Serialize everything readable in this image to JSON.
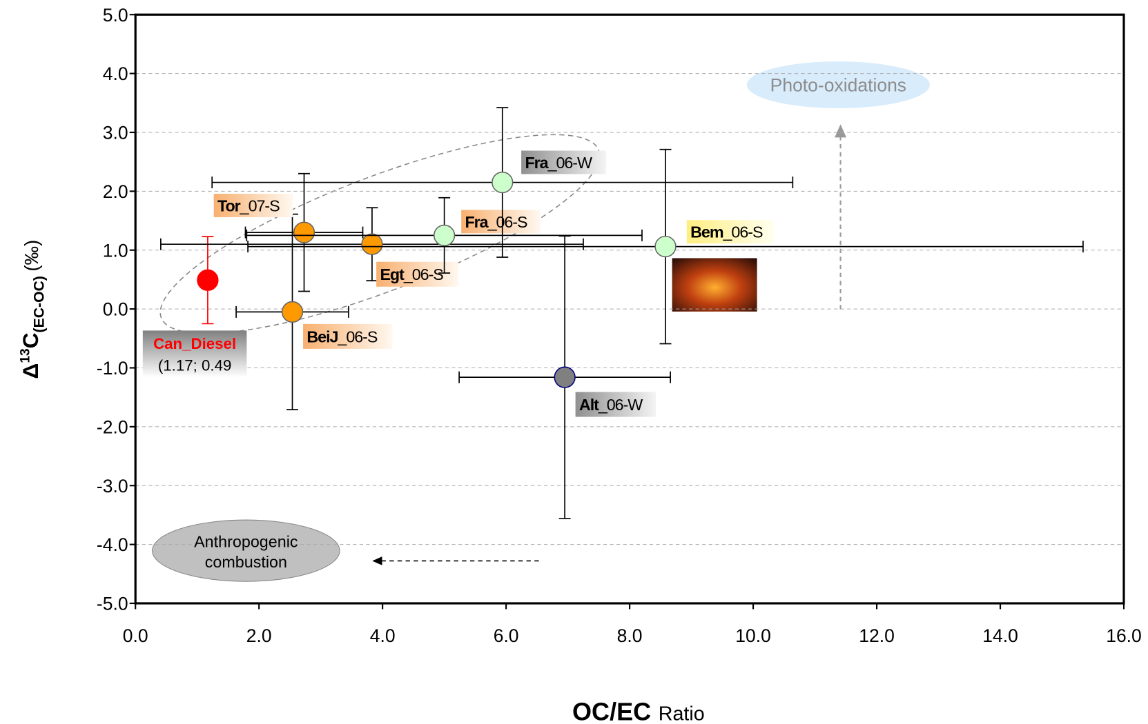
{
  "chart_data": {
    "type": "scatter",
    "xlabel": {
      "main": "OC/EC",
      "rest": "Ratio"
    },
    "ylabel": {
      "main": "Δ",
      "sup": "13",
      "base": "C",
      "sub": "(EC-OC)",
      "unit": "(‰)"
    },
    "xlim": [
      0,
      16
    ],
    "ylim": [
      -5,
      5
    ],
    "xticks": [
      {
        "value": 0,
        "label": "0.0"
      },
      {
        "value": 2,
        "label": "2.0"
      },
      {
        "value": 4,
        "label": "4.0"
      },
      {
        "value": 6,
        "label": "6.0"
      },
      {
        "value": 8,
        "label": "8.0"
      },
      {
        "value": 10,
        "label": "10.0"
      },
      {
        "value": 12,
        "label": "12.0"
      },
      {
        "value": 14,
        "label": "14.0"
      },
      {
        "value": 16,
        "label": "16.0"
      }
    ],
    "yticks": [
      {
        "value": -5,
        "label": "-5.0"
      },
      {
        "value": -4,
        "label": "-4.0"
      },
      {
        "value": -3,
        "label": "-3.0"
      },
      {
        "value": -2,
        "label": "-2.0"
      },
      {
        "value": -1,
        "label": "-1.0"
      },
      {
        "value": 0,
        "label": "0.0"
      },
      {
        "value": 1,
        "label": "1.0"
      },
      {
        "value": 2,
        "label": "2.0"
      },
      {
        "value": 3,
        "label": "3.0"
      },
      {
        "value": 4,
        "label": "4.0"
      },
      {
        "value": 5,
        "label": "5.0"
      }
    ],
    "grid": true,
    "series": [
      {
        "name": "Can_Diesel",
        "color": "#ff0000",
        "x": [
          1.17
        ],
        "values": [
          0.49
        ],
        "yerr": [
          0.74
        ],
        "note": "(1.17; 0.49"
      },
      {
        "name": "BeiJ",
        "suffix": "_06-S",
        "color": "#ff9900",
        "x": [
          2.54
        ],
        "values": [
          -0.05
        ],
        "xerr": [
          0.91
        ],
        "yerr": [
          1.66
        ]
      },
      {
        "name": "Tor",
        "suffix": "_07-S",
        "color": "#ff9900",
        "x": [
          2.73
        ],
        "values": [
          1.3
        ],
        "xerr": [
          0.95
        ],
        "yerr": [
          1.0
        ]
      },
      {
        "name": "Egt",
        "suffix": "_06-S",
        "color": "#ff9900",
        "x": [
          3.83
        ],
        "values": [
          1.1
        ],
        "xerr": [
          3.42
        ],
        "yerr": [
          0.62
        ]
      },
      {
        "name": "Fra",
        "suffix": "_06-S",
        "color": "#ccffcc",
        "x": [
          5.0
        ],
        "values": [
          1.25
        ],
        "xerr": [
          3.2
        ],
        "yerr": [
          0.64
        ]
      },
      {
        "name": "Fra",
        "suffix": "_06-W",
        "color": "#ccffcc",
        "x": [
          5.94
        ],
        "values": [
          2.15
        ],
        "xerr": [
          4.7
        ],
        "yerr": [
          1.27
        ]
      },
      {
        "name": "Bem",
        "suffix": "_06-S",
        "color": "#ccffcc",
        "x": [
          8.58
        ],
        "values": [
          1.06
        ],
        "xerr": [
          6.76
        ],
        "yerr": [
          1.65
        ]
      },
      {
        "name": "Alt",
        "suffix": "_06-W",
        "color": "#808080",
        "x": [
          6.95
        ],
        "values": [
          -1.16
        ],
        "xerr": [
          1.71
        ],
        "yerr": [
          2.4
        ]
      }
    ],
    "annotations": [
      "Photo-oxidations",
      "Anthropogenic combustion"
    ]
  }
}
